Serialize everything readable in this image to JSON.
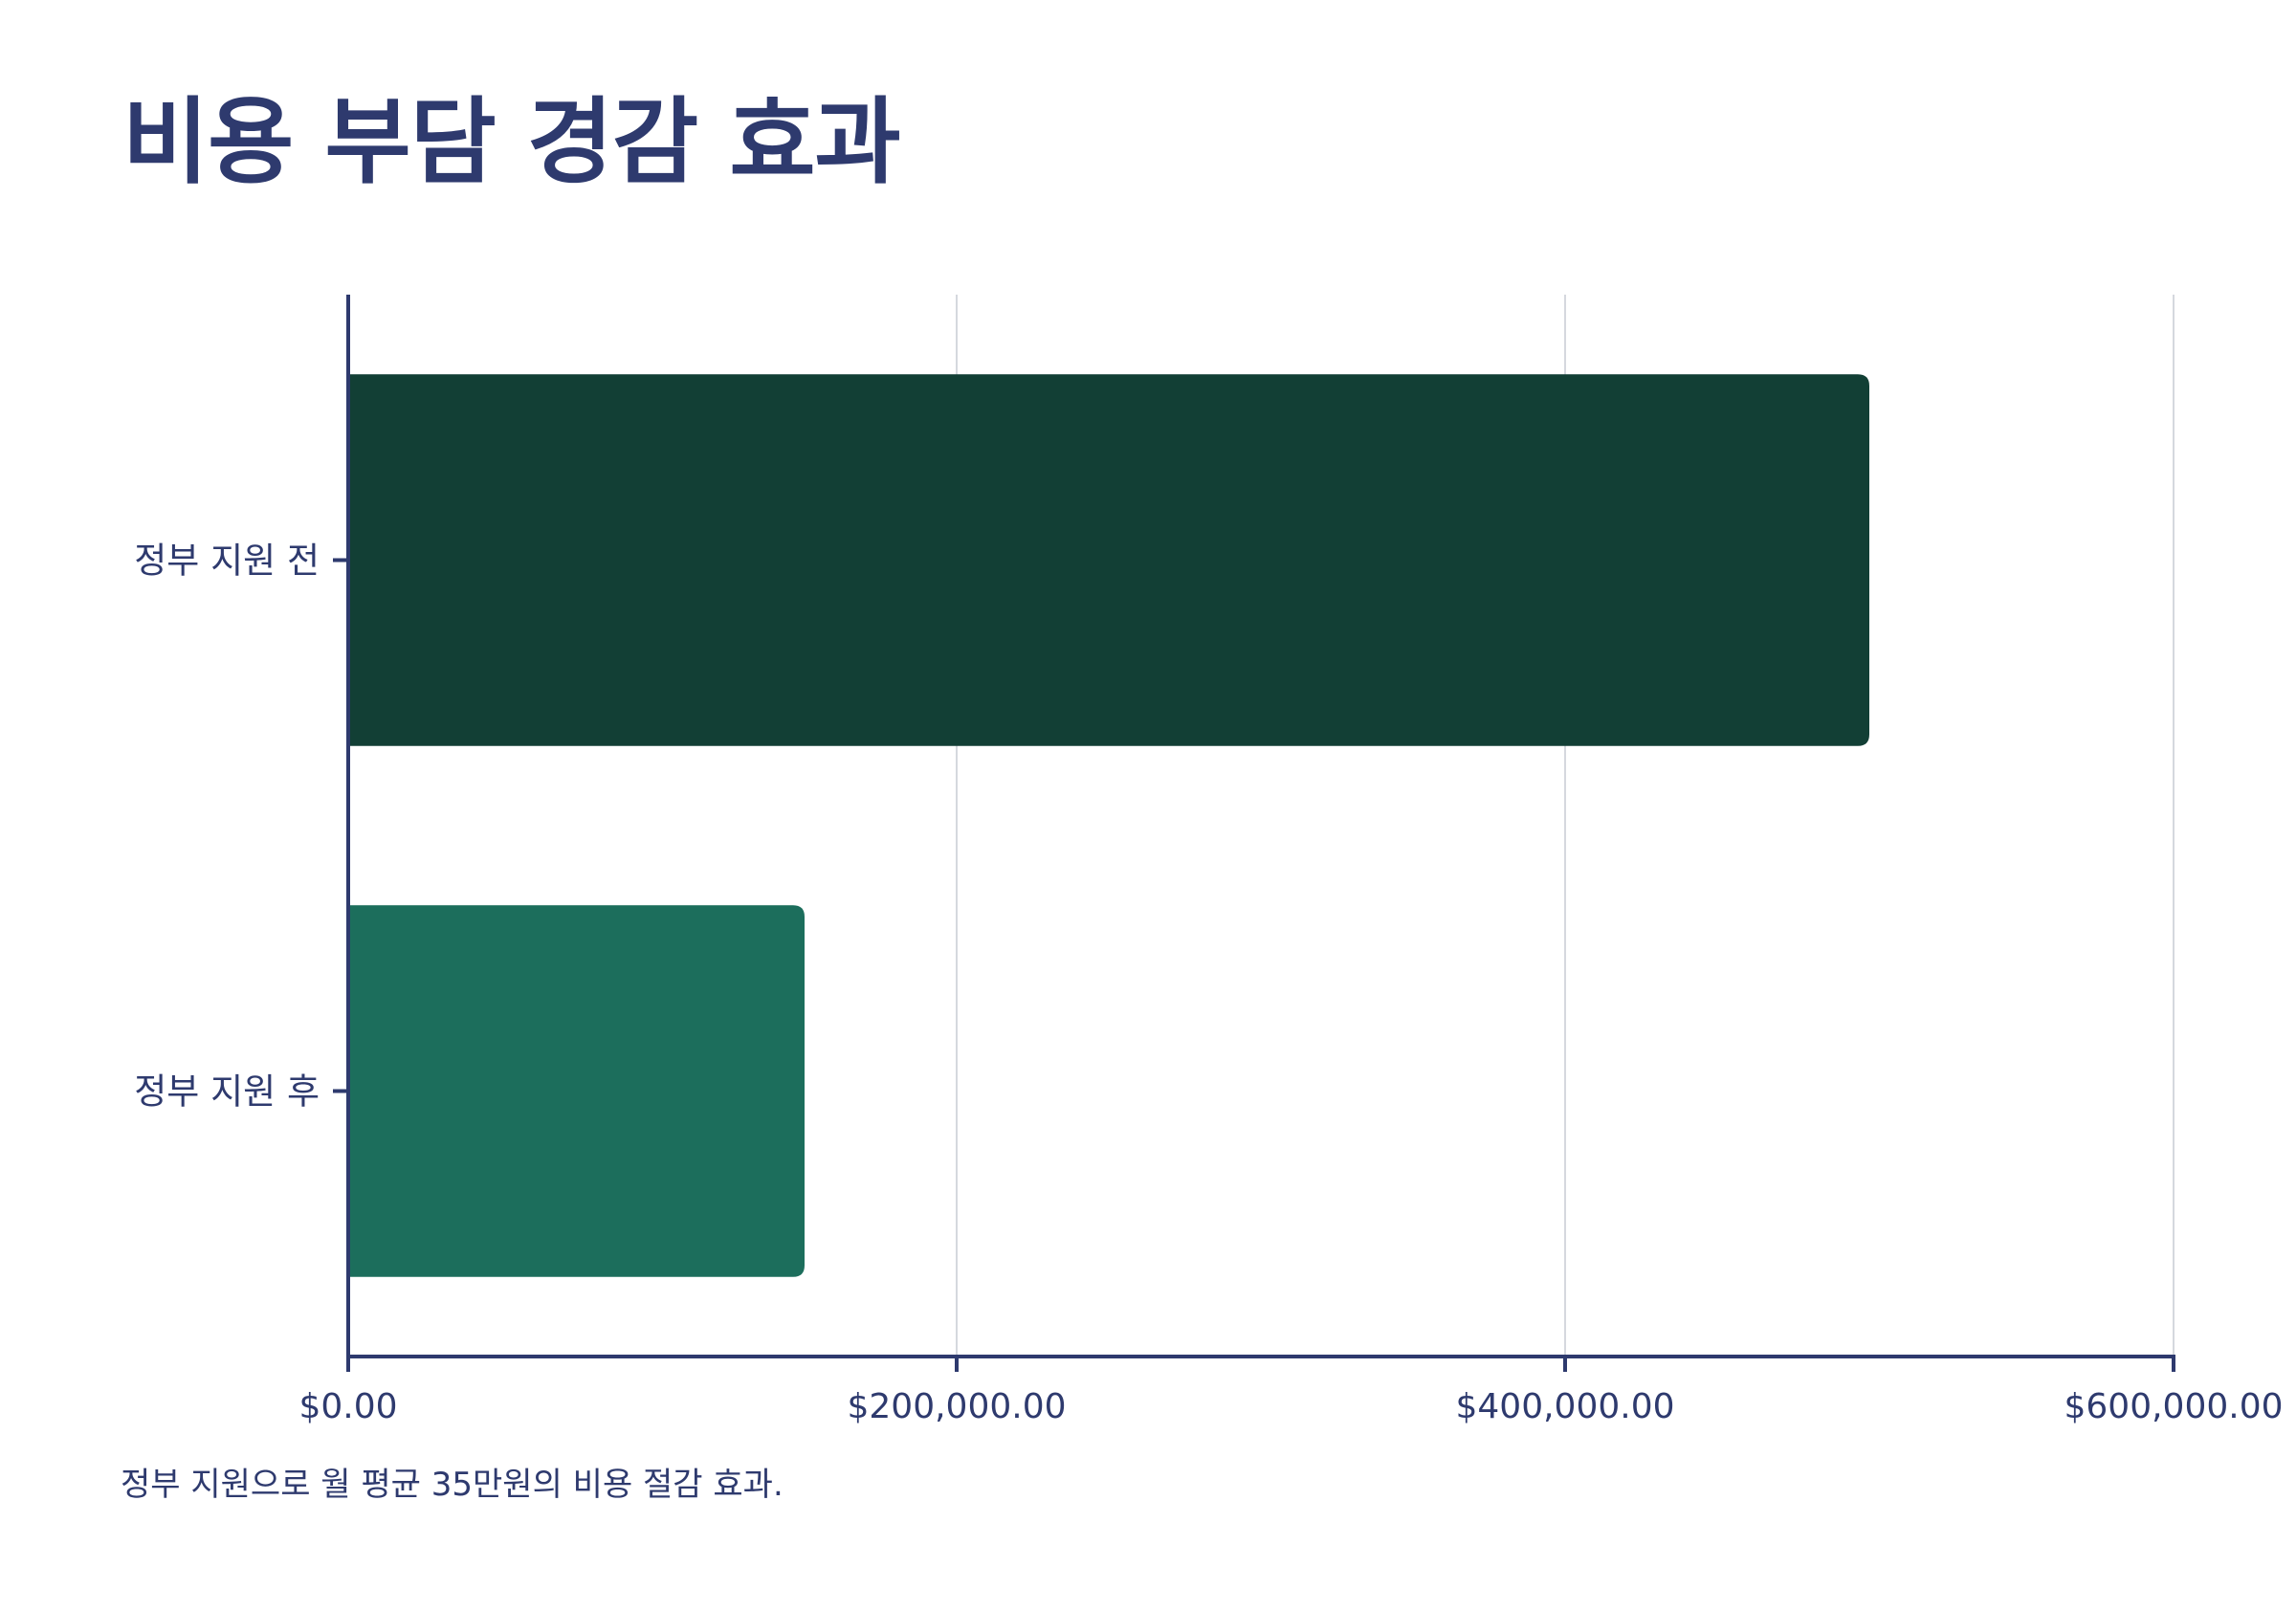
{
  "chart_data": {
    "type": "bar",
    "orientation": "horizontal",
    "title": "비용 부담 경감 효과",
    "categories": [
      "정부 지원 전",
      "정부 지원 후"
    ],
    "values": [
      500000,
      150000
    ],
    "colors": [
      "#123f35",
      "#1c6e5c"
    ],
    "xlabel": "",
    "ylabel": "",
    "xlim": [
      0,
      600000
    ],
    "x_ticks": [
      0,
      200000,
      400000,
      600000
    ],
    "x_tick_labels": [
      "$0.00",
      "$200,000.00",
      "$400,000.00",
      "$600,000.00"
    ],
    "grid": "vertical",
    "legend": "none",
    "caption": "정부 지원으로 월 평균 35만원의 비용 절감 효과."
  },
  "colors": {
    "text": "#2e3a6e",
    "axis": "#2e3a6e",
    "grid": "#d5d8de",
    "background": "#ffffff"
  }
}
